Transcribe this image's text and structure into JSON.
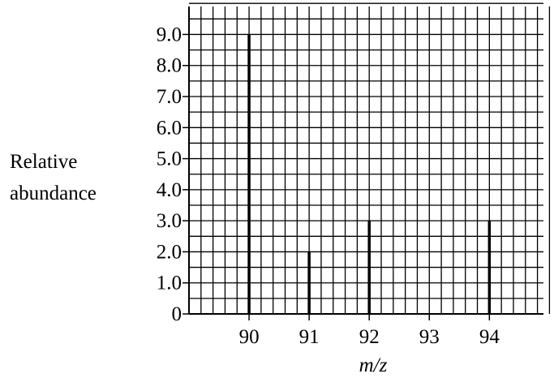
{
  "chart_data": {
    "type": "bar",
    "title": "",
    "xlabel": "m/z",
    "ylabel_lines": [
      "Relative",
      "abundance"
    ],
    "x_ticks": [
      "90",
      "91",
      "92",
      "93",
      "94"
    ],
    "y_ticks": [
      "0",
      "1.0",
      "2.0",
      "3.0",
      "4.0",
      "5.0",
      "6.0",
      "7.0",
      "8.0",
      "9.0"
    ],
    "xlim": [
      89,
      94.9
    ],
    "ylim": [
      0,
      9.9
    ],
    "grid": true,
    "series": [
      {
        "x": [
          90,
          91,
          92,
          94
        ],
        "values": [
          9.0,
          2.0,
          3.0,
          3.0
        ]
      }
    ]
  }
}
